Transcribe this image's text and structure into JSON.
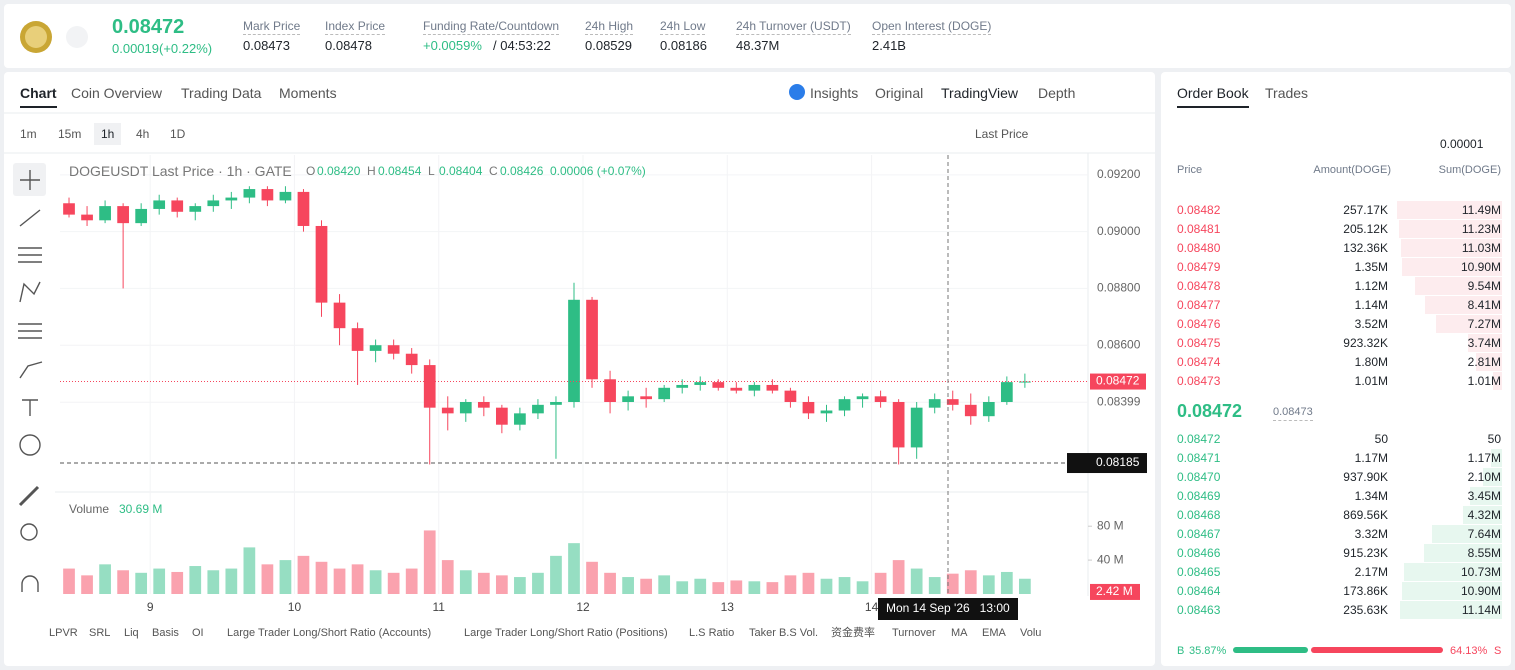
{
  "header": {
    "price": "0.08472",
    "change": "0.00019(+0.22%)",
    "stats": [
      {
        "label": "Mark Price",
        "value": "0.08473"
      },
      {
        "label": "Index Price",
        "value": "0.08478"
      },
      {
        "label": "Funding Rate/Countdown",
        "value": "+0.0059%",
        "extra": "/ 04:53:22"
      },
      {
        "label": "24h High",
        "value": "0.08529"
      },
      {
        "label": "24h Low",
        "value": "0.08186"
      },
      {
        "label": "24h Turnover (USDT)",
        "value": "48.37M"
      },
      {
        "label": "Open Interest (DOGE)",
        "value": "2.41B"
      }
    ]
  },
  "chart_tabs": [
    "Chart",
    "Coin Overview",
    "Trading Data",
    "Moments"
  ],
  "view_tabs": [
    "Insights",
    "Original",
    "TradingView",
    "Depth"
  ],
  "intervals": [
    "1m",
    "15m",
    "1h",
    "4h",
    "1D"
  ],
  "price_type": "Last Price",
  "legend": {
    "symbol": "DOGEUSDT Last Price · 1h · GATE",
    "items": [
      {
        "key": "O",
        "value": "0.08420"
      },
      {
        "key": "H",
        "value": "0.08454"
      },
      {
        "key": "L",
        "value": "0.08404"
      },
      {
        "key": "C",
        "value": "0.08426"
      }
    ],
    "change": "0.00006 (+0.07%)"
  },
  "chart_data": {
    "type": "candlestick",
    "up_color": "#2ebd85",
    "down_color": "#f6465d",
    "grid": true,
    "xlim": [
      0,
      171
    ],
    "xticks": [
      {
        "value": 15,
        "label": "9"
      },
      {
        "value": 39,
        "label": "10"
      },
      {
        "value": 63,
        "label": "11"
      },
      {
        "value": 87,
        "label": "12"
      },
      {
        "value": 111,
        "label": "13"
      },
      {
        "value": 135,
        "label": "14"
      }
    ],
    "ylim": [
      0.0809,
      0.0927
    ],
    "yticks": [
      {
        "value": 0.092,
        "label": "0.09200"
      },
      {
        "value": 0.09,
        "label": "0.09000"
      },
      {
        "value": 0.088,
        "label": "0.08800"
      },
      {
        "value": 0.086,
        "label": "0.08600"
      },
      {
        "value": 0.08399,
        "label": "0.08399"
      }
    ],
    "x": [
      1.5,
      4.5,
      7.5,
      10.5,
      13.5,
      16.5,
      19.5,
      22.5,
      25.5,
      28.5,
      31.5,
      34.5,
      37.5,
      40.5,
      43.5,
      46.5,
      49.5,
      52.5,
      55.5,
      58.5,
      61.5,
      64.5,
      67.5,
      70.5,
      73.5,
      76.5,
      79.5,
      82.5,
      85.5,
      88.5,
      91.5,
      94.5,
      97.5,
      100.5,
      103.5,
      106.5,
      109.5,
      112.5,
      115.5,
      118.5,
      121.5,
      124.5,
      127.5,
      130.5,
      133.5,
      136.5,
      139.5,
      142.5,
      145.5,
      148.5,
      151.5,
      154.5,
      157.5,
      160.5
    ],
    "open": [
      0.091,
      0.0906,
      0.0904,
      0.0909,
      0.0903,
      0.0908,
      0.0911,
      0.0907,
      0.0909,
      0.0911,
      0.0912,
      0.0915,
      0.0911,
      0.0914,
      0.0902,
      0.0875,
      0.0866,
      0.0858,
      0.086,
      0.0857,
      0.0853,
      0.0838,
      0.0836,
      0.084,
      0.0838,
      0.0832,
      0.0836,
      0.0839,
      0.084,
      0.0876,
      0.0848,
      0.084,
      0.0842,
      0.0841,
      0.0845,
      0.0846,
      0.0847,
      0.0845,
      0.0844,
      0.0846,
      0.0844,
      0.084,
      0.0836,
      0.0837,
      0.0841,
      0.0842,
      0.084,
      0.0824,
      0.0838,
      0.0841,
      0.0839,
      0.0835,
      0.084,
      0.0847
    ],
    "high": [
      0.0912,
      0.0909,
      0.0911,
      0.091,
      0.091,
      0.0913,
      0.0912,
      0.091,
      0.0913,
      0.0914,
      0.0916,
      0.0916,
      0.0916,
      0.0915,
      0.0904,
      0.0878,
      0.0868,
      0.0862,
      0.0862,
      0.0859,
      0.0855,
      0.0842,
      0.0841,
      0.0842,
      0.0839,
      0.0838,
      0.0841,
      0.0842,
      0.0882,
      0.0877,
      0.0851,
      0.0844,
      0.0845,
      0.0846,
      0.0848,
      0.0849,
      0.0848,
      0.0847,
      0.0847,
      0.0848,
      0.0845,
      0.0842,
      0.0839,
      0.0842,
      0.0843,
      0.0844,
      0.0841,
      0.084,
      0.0843,
      0.0844,
      0.0843,
      0.0842,
      0.0849,
      0.085
    ],
    "low": [
      0.0905,
      0.0902,
      0.0903,
      0.088,
      0.0902,
      0.0906,
      0.0905,
      0.0904,
      0.0907,
      0.0908,
      0.091,
      0.0909,
      0.091,
      0.09,
      0.087,
      0.086,
      0.0846,
      0.0854,
      0.0855,
      0.085,
      0.0818,
      0.083,
      0.0833,
      0.0835,
      0.0829,
      0.083,
      0.0834,
      0.082,
      0.0838,
      0.0845,
      0.0836,
      0.0837,
      0.0838,
      0.084,
      0.0843,
      0.0844,
      0.0844,
      0.0843,
      0.0842,
      0.0843,
      0.0838,
      0.0834,
      0.0833,
      0.0835,
      0.0838,
      0.0838,
      0.0818,
      0.082,
      0.0836,
      0.0837,
      0.0832,
      0.0833,
      0.0839,
      0.0845
    ],
    "close": [
      0.0906,
      0.0904,
      0.0909,
      0.0903,
      0.0908,
      0.0911,
      0.0907,
      0.0909,
      0.0911,
      0.0912,
      0.0915,
      0.0911,
      0.0914,
      0.0902,
      0.0875,
      0.0866,
      0.0858,
      0.086,
      0.0857,
      0.0853,
      0.0838,
      0.0836,
      0.084,
      0.0838,
      0.0832,
      0.0836,
      0.0839,
      0.084,
      0.0876,
      0.0848,
      0.084,
      0.0842,
      0.0841,
      0.0845,
      0.0846,
      0.0847,
      0.0845,
      0.0844,
      0.0846,
      0.0844,
      0.084,
      0.0836,
      0.0837,
      0.0841,
      0.0842,
      0.084,
      0.0824,
      0.0838,
      0.0841,
      0.0839,
      0.0835,
      0.084,
      0.0847,
      0.08472
    ],
    "volume_ylim": [
      0,
      118
    ],
    "volume_yticks": [
      {
        "value": 80,
        "label": "80 M"
      },
      {
        "value": 40,
        "label": "40 M"
      }
    ],
    "volume": [
      30,
      22,
      35,
      28,
      25,
      30,
      26,
      33,
      28,
      30,
      55,
      35,
      40,
      45,
      38,
      30,
      35,
      28,
      25,
      30,
      75,
      40,
      28,
      25,
      22,
      20,
      25,
      45,
      60,
      38,
      25,
      20,
      18,
      22,
      15,
      18,
      14,
      16,
      15,
      14,
      22,
      25,
      18,
      20,
      15,
      25,
      40,
      30,
      20,
      24,
      28,
      22,
      26,
      18
    ],
    "volume_title": "Volume",
    "volume_value": "30.69 M",
    "last_price": {
      "value": 0.08472,
      "label": "0.08472"
    },
    "crosshair_price": {
      "value": 0.08185,
      "label": "0.08185"
    },
    "crosshair_volume": {
      "value": 2.42,
      "label": "2.42 M"
    },
    "crosshair_time": "Mon 14 Sep '26   13:00"
  },
  "indicators": [
    "LPVR",
    "SRL",
    "Liq",
    "Basis",
    "OI",
    "Large Trader Long/Short Ratio (Accounts)",
    "Large Trader Long/Short Ratio (Positions)",
    "L.S Ratio",
    "Taker B.S Vol.",
    "资金费率",
    "Turnover",
    "MA",
    "EMA",
    "Volu"
  ],
  "order_book": {
    "tabs": [
      "Order Book",
      "Trades"
    ],
    "precision": "0.00001",
    "columns": [
      "Price",
      "Amount(DOGE)",
      "Sum(DOGE)"
    ],
    "asks": [
      {
        "price": "0.08482",
        "amount": "257.17K",
        "sum": {
          "value": 11490000,
          "label": "11.49M"
        }
      },
      {
        "price": "0.08481",
        "amount": "205.12K",
        "sum": {
          "value": 11230000,
          "label": "11.23M"
        }
      },
      {
        "price": "0.08480",
        "amount": "132.36K",
        "sum": {
          "value": 11030000,
          "label": "11.03M"
        }
      },
      {
        "price": "0.08479",
        "amount": "1.35M",
        "sum": {
          "value": 10900000,
          "label": "10.90M"
        }
      },
      {
        "price": "0.08478",
        "amount": "1.12M",
        "sum": {
          "value": 9540000,
          "label": "9.54M"
        }
      },
      {
        "price": "0.08477",
        "amount": "1.14M",
        "sum": {
          "value": 8410000,
          "label": "8.41M"
        }
      },
      {
        "price": "0.08476",
        "amount": "3.52M",
        "sum": {
          "value": 7270000,
          "label": "7.27M"
        }
      },
      {
        "price": "0.08475",
        "amount": "923.32K",
        "sum": {
          "value": 3740000,
          "label": "3.74M"
        }
      },
      {
        "price": "0.08474",
        "amount": "1.80M",
        "sum": {
          "value": 2810000,
          "label": "2.81M"
        }
      },
      {
        "price": "0.08473",
        "amount": "1.01M",
        "sum": {
          "value": 1010000,
          "label": "1.01M"
        }
      }
    ],
    "last": "0.08472",
    "mark": "0.08473",
    "bids": [
      {
        "price": "0.08472",
        "amount": "50",
        "sum": 50
      },
      {
        "price": "0.08471",
        "amount": "1.17M",
        "sum": {
          "value": 1170000,
          "label": "1.17M"
        }
      },
      {
        "price": "0.08470",
        "amount": "937.90K",
        "sum": {
          "value": 2100000,
          "label": "2.10M"
        }
      },
      {
        "price": "0.08469",
        "amount": "1.34M",
        "sum": {
          "value": 3450000,
          "label": "3.45M"
        }
      },
      {
        "price": "0.08468",
        "amount": "869.56K",
        "sum": {
          "value": 4320000,
          "label": "4.32M"
        }
      },
      {
        "price": "0.08467",
        "amount": "3.32M",
        "sum": {
          "value": 7640000,
          "label": "7.64M"
        }
      },
      {
        "price": "0.08466",
        "amount": "915.23K",
        "sum": {
          "value": 8550000,
          "label": "8.55M"
        }
      },
      {
        "price": "0.08465",
        "amount": "2.17M",
        "sum": {
          "value": 10730000,
          "label": "10.73M"
        }
      },
      {
        "price": "0.08464",
        "amount": "173.86K",
        "sum": {
          "value": 10900000,
          "label": "10.90M"
        }
      },
      {
        "price": "0.08463",
        "amount": "235.63K",
        "sum": {
          "value": 11140000,
          "label": "11.14M"
        }
      }
    ],
    "buy": "B",
    "buy_ratio": {
      "value": 35.87,
      "label": "35.87%"
    },
    "sell_ratio": {
      "value": 64.13,
      "label": "64.13%"
    },
    "sell": "S"
  }
}
